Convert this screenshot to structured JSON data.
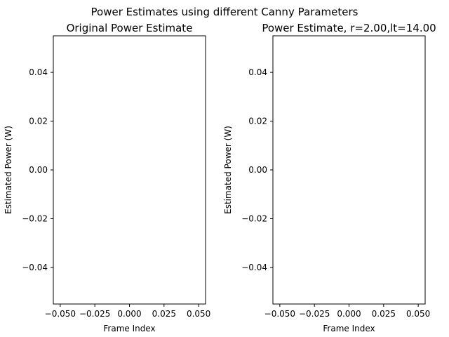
{
  "figure": {
    "suptitle": "Power Estimates using different Canny Parameters"
  },
  "chart_data": [
    {
      "type": "line",
      "title": "Original Power Estimate",
      "xlabel": "Frame Index",
      "ylabel": "Estimated Power (W)",
      "xlim": [
        -0.055,
        0.055
      ],
      "ylim": [
        -0.055,
        0.055
      ],
      "xticks": [
        -0.05,
        -0.025,
        0.0,
        0.025,
        0.05
      ],
      "xtick_labels": [
        "−0.050",
        "−0.025",
        "0.000",
        "0.025",
        "0.050"
      ],
      "yticks": [
        -0.04,
        -0.02,
        0.0,
        0.02,
        0.04
      ],
      "ytick_labels": [
        "−0.04",
        "−0.02",
        "0.00",
        "0.02",
        "0.04"
      ],
      "series": [
        {
          "x": [],
          "values": []
        }
      ],
      "grid": false
    },
    {
      "type": "line",
      "title": "Power Estimate, r=2.00,lt=14.00",
      "xlabel": "Frame Index",
      "ylabel": "Estimated Power (W)",
      "xlim": [
        -0.055,
        0.055
      ],
      "ylim": [
        -0.055,
        0.055
      ],
      "xticks": [
        -0.05,
        -0.025,
        0.0,
        0.025,
        0.05
      ],
      "xtick_labels": [
        "−0.050",
        "−0.025",
        "0.000",
        "0.025",
        "0.050"
      ],
      "yticks": [
        -0.04,
        -0.02,
        0.0,
        0.02,
        0.04
      ],
      "ytick_labels": [
        "−0.04",
        "−0.02",
        "0.00",
        "0.02",
        "0.04"
      ],
      "series": [
        {
          "x": [],
          "values": []
        }
      ],
      "grid": false
    }
  ]
}
